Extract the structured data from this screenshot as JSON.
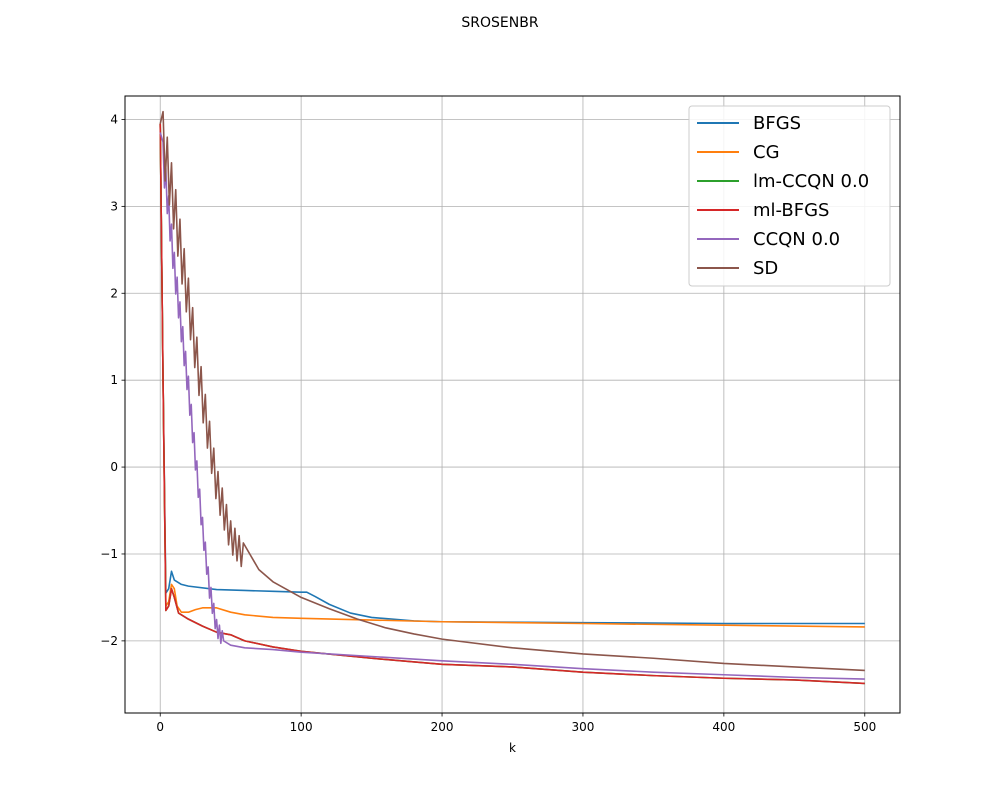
{
  "chart_data": {
    "type": "line",
    "title": "SROSENBR",
    "xlabel": "k",
    "ylabel": "",
    "xlim": [
      -25,
      525
    ],
    "ylim": [
      -2.83,
      4.27
    ],
    "xticks": [
      0,
      100,
      200,
      300,
      400,
      500
    ],
    "yticks": [
      -2,
      -1,
      0,
      1,
      2,
      3,
      4
    ],
    "xtick_labels": [
      "0",
      "100",
      "200",
      "300",
      "400",
      "500"
    ],
    "ytick_labels": [
      "−2",
      "−1",
      "0",
      "1",
      "2",
      "3",
      "4"
    ],
    "grid": true,
    "legend_position": "top-right",
    "series": [
      {
        "name": "BFGS",
        "color": "#1f77b4",
        "oscillate": null,
        "points": [
          [
            0,
            3.95
          ],
          [
            2,
            1.0
          ],
          [
            4,
            -1.45
          ],
          [
            6,
            -1.4
          ],
          [
            8,
            -1.2
          ],
          [
            10,
            -1.3
          ],
          [
            15,
            -1.35
          ],
          [
            20,
            -1.37
          ],
          [
            40,
            -1.41
          ],
          [
            60,
            -1.42
          ],
          [
            80,
            -1.43
          ],
          [
            100,
            -1.44
          ],
          [
            104,
            -1.44
          ],
          [
            110,
            -1.49
          ],
          [
            120,
            -1.58
          ],
          [
            135,
            -1.68
          ],
          [
            150,
            -1.73
          ],
          [
            180,
            -1.77
          ],
          [
            200,
            -1.78
          ],
          [
            300,
            -1.79
          ],
          [
            400,
            -1.8
          ],
          [
            500,
            -1.8
          ]
        ]
      },
      {
        "name": "CG",
        "color": "#ff7f0e",
        "oscillate": null,
        "points": [
          [
            0,
            3.95
          ],
          [
            2,
            1.0
          ],
          [
            4,
            -1.6
          ],
          [
            6,
            -1.55
          ],
          [
            8,
            -1.35
          ],
          [
            10,
            -1.4
          ],
          [
            12,
            -1.6
          ],
          [
            15,
            -1.67
          ],
          [
            20,
            -1.67
          ],
          [
            25,
            -1.64
          ],
          [
            30,
            -1.62
          ],
          [
            40,
            -1.62
          ],
          [
            50,
            -1.67
          ],
          [
            60,
            -1.7
          ],
          [
            80,
            -1.73
          ],
          [
            100,
            -1.74
          ],
          [
            150,
            -1.76
          ],
          [
            200,
            -1.78
          ],
          [
            300,
            -1.8
          ],
          [
            400,
            -1.82
          ],
          [
            500,
            -1.84
          ]
        ]
      },
      {
        "name": "lm-CCQN 0.0",
        "color": "#2ca02c",
        "oscillate": null,
        "points": [
          [
            0,
            3.95
          ],
          [
            2,
            1.0
          ],
          [
            4,
            -1.65
          ],
          [
            6,
            -1.6
          ],
          [
            8,
            -1.4
          ],
          [
            10,
            -1.5
          ],
          [
            13,
            -1.68
          ],
          [
            20,
            -1.75
          ],
          [
            30,
            -1.83
          ],
          [
            40,
            -1.9
          ],
          [
            50,
            -1.93
          ],
          [
            60,
            -2.0
          ],
          [
            80,
            -2.07
          ],
          [
            100,
            -2.12
          ],
          [
            150,
            -2.2
          ],
          [
            200,
            -2.27
          ],
          [
            250,
            -2.3
          ],
          [
            300,
            -2.36
          ],
          [
            350,
            -2.4
          ],
          [
            400,
            -2.43
          ],
          [
            450,
            -2.45
          ],
          [
            500,
            -2.49
          ]
        ]
      },
      {
        "name": "ml-BFGS",
        "color": "#d62728",
        "oscillate": null,
        "points": [
          [
            0,
            3.95
          ],
          [
            2,
            1.0
          ],
          [
            4,
            -1.65
          ],
          [
            6,
            -1.6
          ],
          [
            8,
            -1.4
          ],
          [
            10,
            -1.5
          ],
          [
            13,
            -1.68
          ],
          [
            20,
            -1.75
          ],
          [
            30,
            -1.83
          ],
          [
            40,
            -1.9
          ],
          [
            50,
            -1.93
          ],
          [
            60,
            -2.0
          ],
          [
            80,
            -2.07
          ],
          [
            100,
            -2.12
          ],
          [
            150,
            -2.2
          ],
          [
            200,
            -2.27
          ],
          [
            250,
            -2.3
          ],
          [
            300,
            -2.36
          ],
          [
            350,
            -2.4
          ],
          [
            400,
            -2.43
          ],
          [
            450,
            -2.45
          ],
          [
            500,
            -2.49
          ]
        ]
      },
      {
        "name": "CCQN 0.0",
        "color": "#9467bd",
        "oscillate": {
          "amp": 0.19,
          "start": 2,
          "end": 44,
          "step": 1
        },
        "points": [
          [
            0,
            3.85
          ],
          [
            5,
            3.1
          ],
          [
            10,
            2.3
          ],
          [
            15,
            1.6
          ],
          [
            20,
            0.9
          ],
          [
            25,
            0.1
          ],
          [
            30,
            -0.7
          ],
          [
            35,
            -1.4
          ],
          [
            40,
            -1.85
          ],
          [
            45,
            -2.0
          ],
          [
            50,
            -2.05
          ],
          [
            60,
            -2.08
          ],
          [
            80,
            -2.1
          ],
          [
            100,
            -2.13
          ],
          [
            150,
            -2.18
          ],
          [
            200,
            -2.23
          ],
          [
            250,
            -2.27
          ],
          [
            300,
            -2.32
          ],
          [
            350,
            -2.36
          ],
          [
            400,
            -2.39
          ],
          [
            450,
            -2.42
          ],
          [
            500,
            -2.44
          ]
        ]
      },
      {
        "name": "SD",
        "color": "#8c564b",
        "oscillate": {
          "amp": 0.33,
          "start": 2,
          "end": 60,
          "step": 1.5
        },
        "points": [
          [
            0,
            3.95
          ],
          [
            10,
            3.0
          ],
          [
            20,
            1.9
          ],
          [
            30,
            0.8
          ],
          [
            40,
            -0.2
          ],
          [
            50,
            -0.8
          ],
          [
            60,
            -1.05
          ],
          [
            70,
            -1.18
          ],
          [
            80,
            -1.32
          ],
          [
            100,
            -1.5
          ],
          [
            120,
            -1.63
          ],
          [
            140,
            -1.75
          ],
          [
            160,
            -1.85
          ],
          [
            180,
            -1.92
          ],
          [
            200,
            -1.98
          ],
          [
            250,
            -2.08
          ],
          [
            300,
            -2.15
          ],
          [
            350,
            -2.2
          ],
          [
            400,
            -2.26
          ],
          [
            450,
            -2.3
          ],
          [
            500,
            -2.34
          ]
        ]
      }
    ]
  }
}
